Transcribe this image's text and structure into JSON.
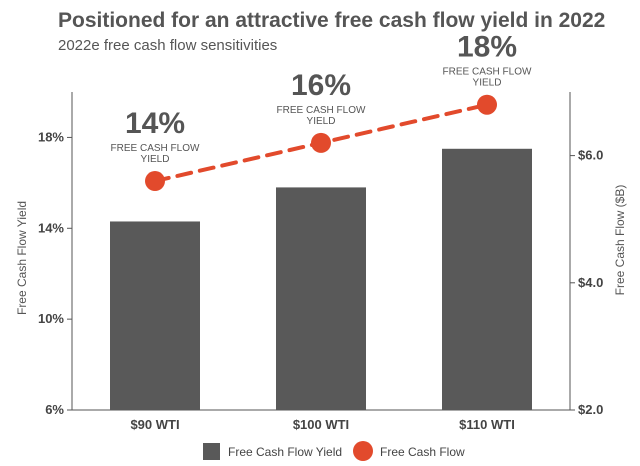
{
  "title": "Positioned for an attractive free cash flow yield in 2022",
  "subtitle": "2022e free cash flow sensitivities",
  "colors": {
    "bar": "#595959",
    "line": "#E24A2C",
    "text": "#555555"
  },
  "chart_data": {
    "type": "bar",
    "categories": [
      "$90 WTI",
      "$100 WTI",
      "$110 WTI"
    ],
    "series": [
      {
        "name": "Free Cash Flow Yield",
        "type": "bar",
        "axis": "left",
        "values": [
          14.3,
          15.8,
          17.5
        ]
      },
      {
        "name": "Free Cash Flow",
        "type": "line",
        "axis": "right",
        "values": [
          5.6,
          6.2,
          6.8
        ]
      }
    ],
    "data_labels": [
      {
        "value": "14%",
        "caption_line1": "FREE CASH FLOW",
        "caption_line2": "YIELD"
      },
      {
        "value": "16%",
        "caption_line1": "FREE CASH FLOW",
        "caption_line2": "YIELD"
      },
      {
        "value": "18%",
        "caption_line1": "FREE CASH FLOW",
        "caption_line2": "YIELD"
      }
    ],
    "y_left": {
      "label": "Free Cash Flow Yield",
      "ylim": [
        6,
        20
      ],
      "ticks": [
        6,
        10,
        14,
        18
      ],
      "tick_labels": [
        "6%",
        "10%",
        "14%",
        "18%"
      ]
    },
    "y_right": {
      "label": "Free Cash Flow ($B)",
      "ylim": [
        2.0,
        7.0
      ],
      "ticks": [
        2.0,
        4.0,
        6.0
      ],
      "tick_labels": [
        "$2.0",
        "$4.0",
        "$6.0"
      ]
    },
    "legend": {
      "placement": "bottom",
      "items": [
        "Free Cash Flow Yield",
        "Free Cash Flow"
      ]
    },
    "grid": false
  }
}
